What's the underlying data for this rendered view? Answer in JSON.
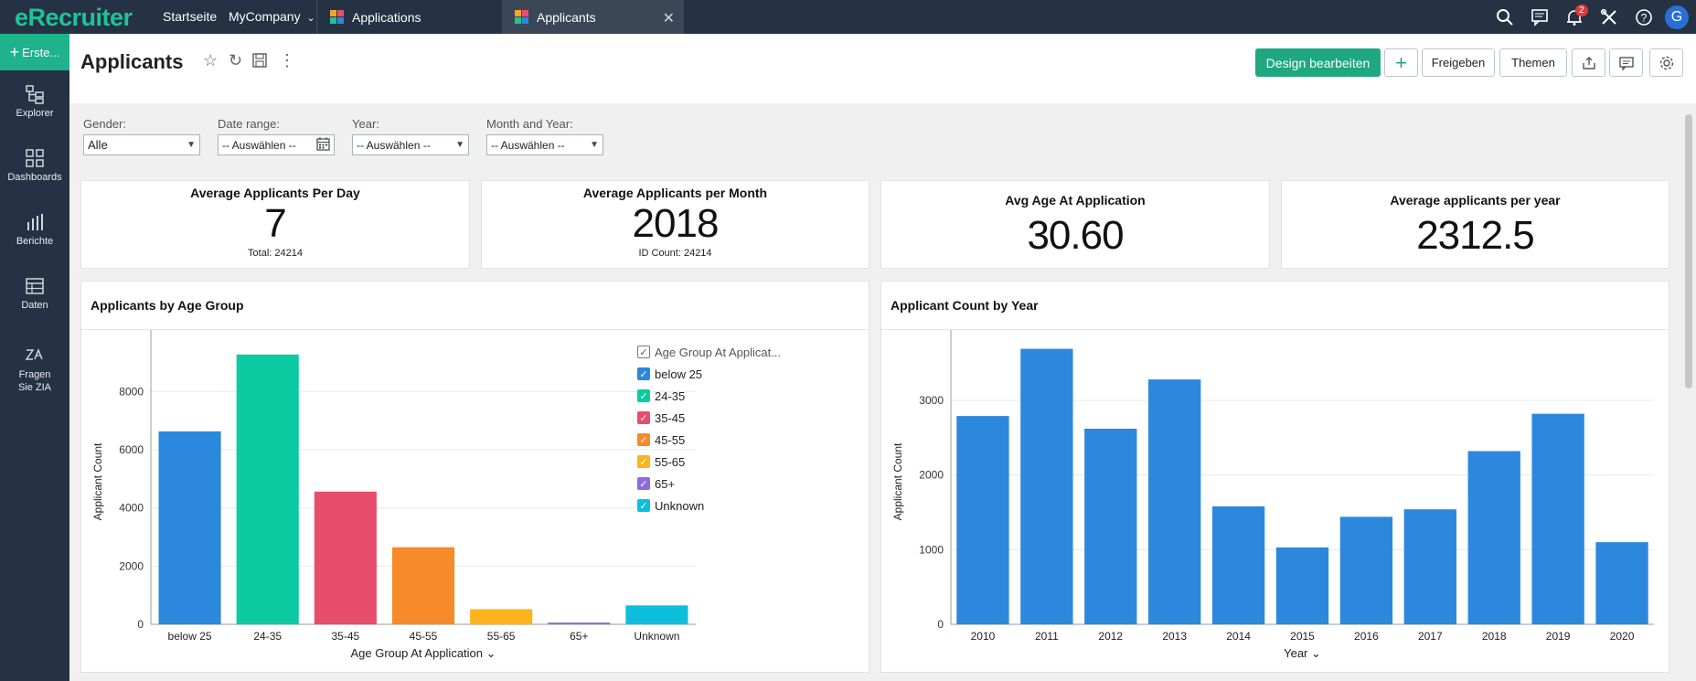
{
  "topbar": {
    "logo": "eRecruiter",
    "nav": [
      "Startseite",
      "MyCompany"
    ],
    "tabs": [
      {
        "label": "Applications",
        "active": false
      },
      {
        "label": "Applicants",
        "active": true
      }
    ],
    "notification_count": "2",
    "avatar": "G",
    "icons": [
      "search-icon",
      "comments-icon",
      "bell-icon",
      "tools-icon",
      "help-icon"
    ]
  },
  "sidebar": {
    "create_label": "Erste...",
    "items": [
      {
        "label": "Explorer",
        "icon": "explorer-icon"
      },
      {
        "label": "Dashboards",
        "icon": "dashboards-icon"
      },
      {
        "label": "Berichte",
        "icon": "reports-icon"
      },
      {
        "label": "Daten",
        "icon": "data-icon"
      },
      {
        "label": "Fragen Sie ZIA",
        "icon": "zia-icon"
      }
    ]
  },
  "header": {
    "title": "Applicants",
    "edit_design": "Design bearbeiten",
    "add": "+",
    "share": "Freigeben",
    "themes": "Themen"
  },
  "filters": [
    {
      "label": "Gender:",
      "value": "Alle"
    },
    {
      "label": "Date range:",
      "value": "-- Auswählen --"
    },
    {
      "label": "Year:",
      "value": "-- Auswählen --"
    },
    {
      "label": "Month and Year:",
      "value": "-- Auswählen --"
    }
  ],
  "kpis": [
    {
      "title": "Average Applicants Per Day",
      "value": "7",
      "sub": "Total: 24214"
    },
    {
      "title": "Average Applicants per Month",
      "value": "2018",
      "sub": "ID Count: 24214"
    },
    {
      "title": "Avg Age At Application",
      "value": "30.60",
      "sub": ""
    },
    {
      "title": "Average applicants per year",
      "value": "2312.5",
      "sub": ""
    }
  ],
  "charts": {
    "age_group": {
      "title": "Applicants by Age Group",
      "legend_title": "Age Group At Applicat..."
    },
    "by_year": {
      "title": "Applicant Count by Year"
    }
  },
  "chart_data": [
    {
      "type": "bar",
      "title": "Applicants by Age Group",
      "xlabel": "Age Group At Application",
      "ylabel": "Applicant Count",
      "categories": [
        "below 25",
        "24-35",
        "35-45",
        "45-55",
        "55-65",
        "65+",
        "Unknown"
      ],
      "values": [
        6630,
        9270,
        4560,
        2650,
        520,
        60,
        650
      ],
      "colors": [
        "#2c88dd",
        "#0ccba2",
        "#e84d6b",
        "#f78a2a",
        "#fbb41c",
        "#8c6cd8",
        "#0dbfdc"
      ],
      "yticks": [
        0,
        2000,
        4000,
        6000,
        8000
      ],
      "ylim": [
        0,
        9800
      ],
      "legend": "right",
      "grid": true
    },
    {
      "type": "bar",
      "title": "Applicant Count by Year",
      "xlabel": "Year",
      "ylabel": "Applicant Count",
      "categories": [
        "2010",
        "2011",
        "2012",
        "2013",
        "2014",
        "2015",
        "2016",
        "2017",
        "2018",
        "2019",
        "2020"
      ],
      "values": [
        2790,
        3690,
        2620,
        3280,
        1580,
        1030,
        1440,
        1540,
        2320,
        2820,
        1100
      ],
      "color": "#2c88dd",
      "yticks": [
        0,
        1000,
        2000,
        3000
      ],
      "ylim": [
        0,
        3820
      ],
      "grid": true
    }
  ]
}
